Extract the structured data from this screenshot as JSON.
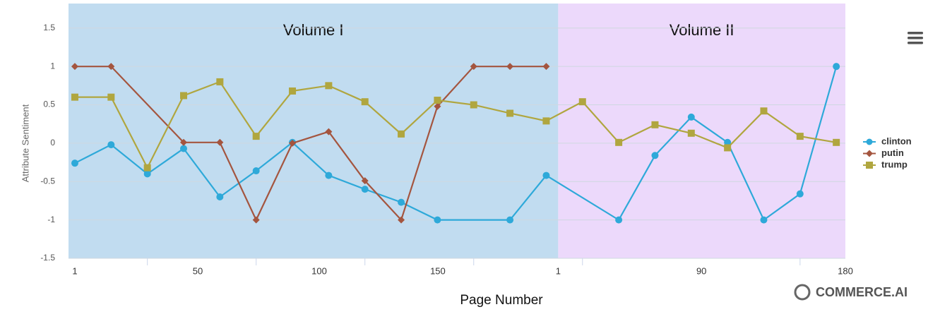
{
  "chart_data": {
    "type": "line",
    "y_axis_title": "Attribute Sentiment",
    "x_axis_title": "Page Number",
    "watermark": "COMMERCE.AI",
    "plot_bands": [
      {
        "label": "Volume I",
        "from": -0.175,
        "to": 13.33,
        "color": "#c1dcf0"
      },
      {
        "label": "Volume II",
        "from": 13.33,
        "to": 21.25,
        "color": "#ecd9fb"
      }
    ],
    "x": [
      0,
      1,
      2,
      3,
      4,
      5,
      6,
      7,
      8,
      9,
      10,
      11,
      12,
      13,
      14,
      15,
      16,
      17,
      18,
      19,
      20,
      21
    ],
    "xlim": [
      -0.175,
      21.25
    ],
    "xticks": [
      {
        "value": 0,
        "label": "1"
      },
      {
        "value": 3.39,
        "label": "50"
      },
      {
        "value": 6.74,
        "label": "100"
      },
      {
        "value": 10.01,
        "label": "150"
      },
      {
        "value": 13.33,
        "label": "1"
      },
      {
        "value": 17.28,
        "label": "90"
      },
      {
        "value": 21.25,
        "label": "180"
      }
    ],
    "xtick_marks": [
      2,
      5,
      8,
      11,
      14,
      20
    ],
    "ylim": [
      -1.5,
      1.82
    ],
    "yticks": [
      1.5,
      1,
      0.5,
      0,
      -0.5,
      -1,
      -1.5
    ],
    "grid": true,
    "connect_nulls": true,
    "series": [
      {
        "name": "clinton",
        "color": "#2ea9d9",
        "marker": "circle",
        "values": [
          -0.26,
          -0.02,
          -0.4,
          -0.07,
          -0.7,
          -0.36,
          0.01,
          -0.42,
          -0.6,
          -0.77,
          -1,
          null,
          -1,
          -0.42,
          null,
          -1,
          -0.16,
          0.34,
          0.01,
          -1,
          -0.66,
          1
        ]
      },
      {
        "name": "putin",
        "color": "#a4553f",
        "marker": "diamond",
        "values": [
          1,
          1,
          null,
          0.01,
          0.01,
          -1,
          0,
          0.15,
          -0.49,
          -1,
          0.48,
          1,
          1,
          1,
          null,
          null,
          null,
          null,
          null,
          null,
          null,
          null
        ]
      },
      {
        "name": "trump",
        "color": "#b0a63f",
        "marker": "square",
        "values": [
          0.6,
          0.6,
          -0.32,
          0.62,
          0.8,
          0.09,
          0.68,
          0.75,
          0.54,
          0.12,
          0.56,
          0.5,
          0.39,
          0.29,
          0.54,
          0.01,
          0.24,
          0.13,
          -0.06,
          0.42,
          0.09,
          0.01
        ]
      }
    ]
  }
}
